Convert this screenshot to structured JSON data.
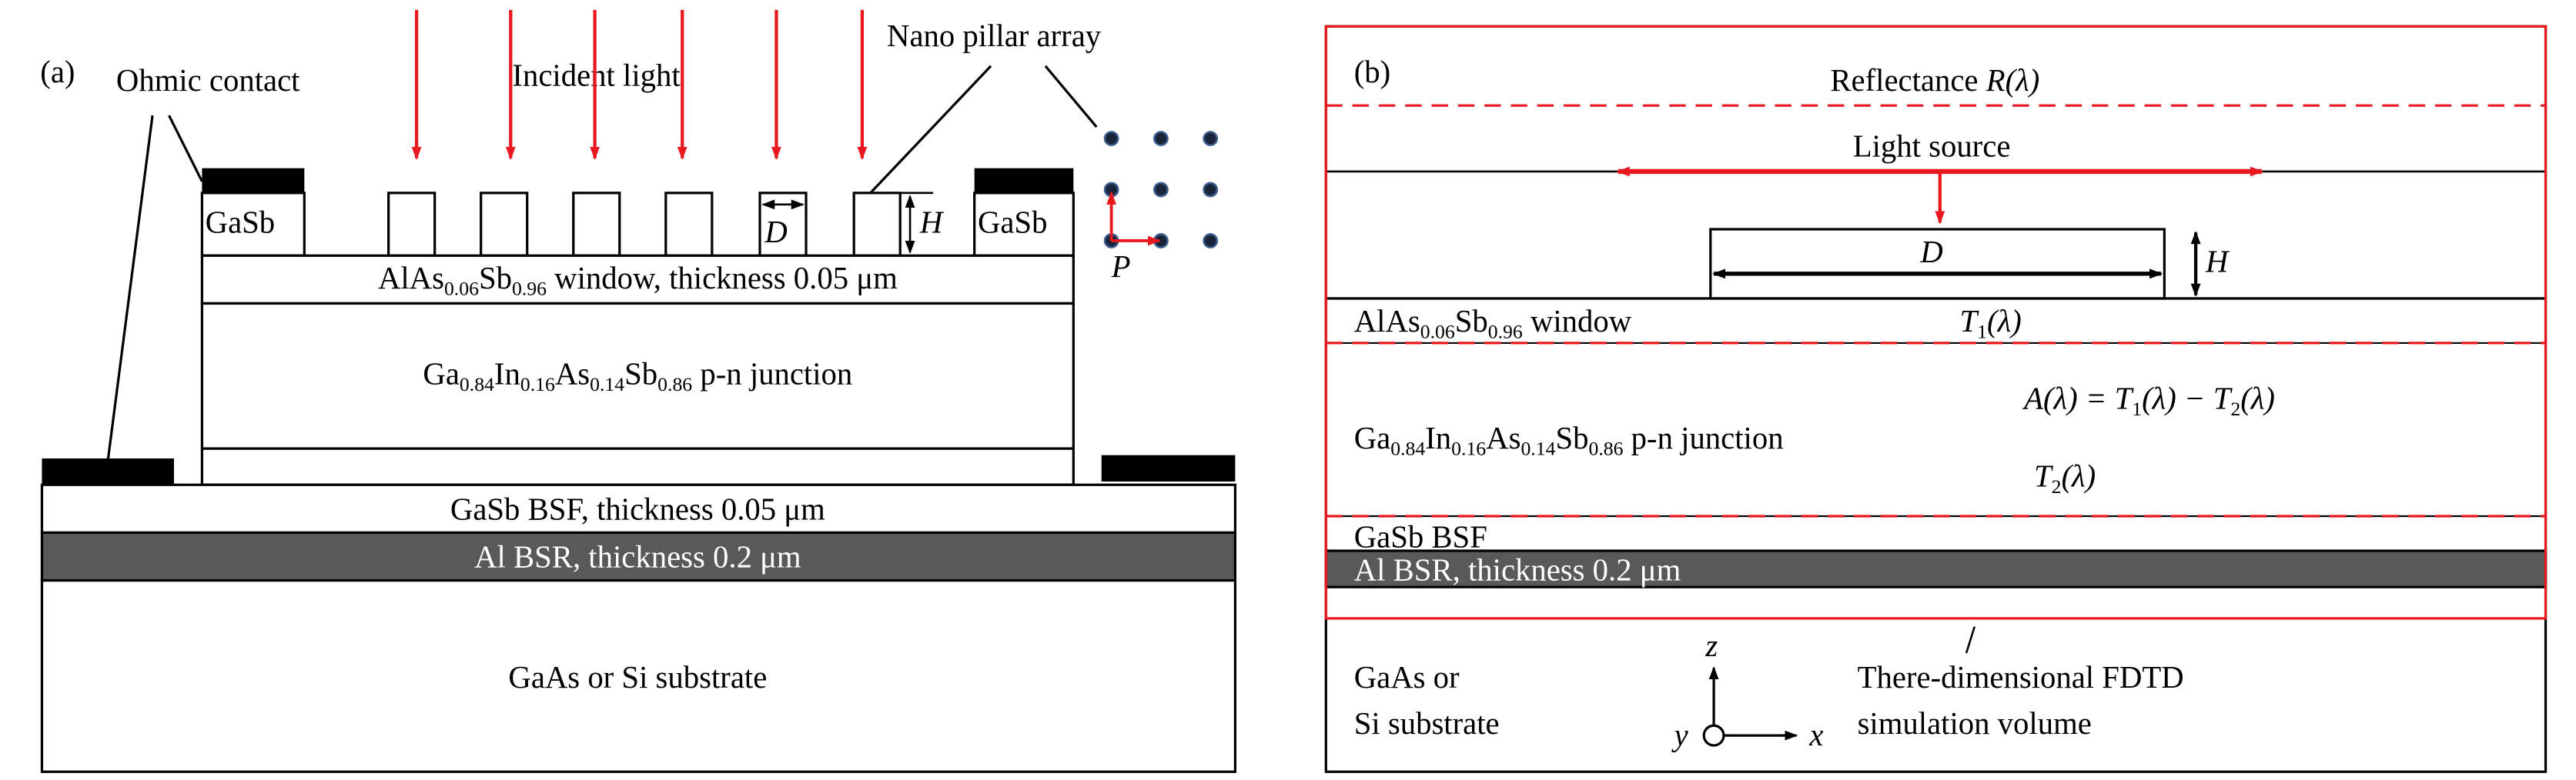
{
  "colors": {
    "accent_red": "#e8191e",
    "bsr_gray": "#595959",
    "dot_fill": "#1a2438",
    "dot_edge": "#3a5a8c"
  },
  "panel_a": {
    "label": "(a)",
    "ohmic_contact": "Ohmic contact",
    "incident_light": "Incident light",
    "nano_pillar_array": "Nano pillar array",
    "gasb_left": "GaSb",
    "gasb_right": "GaSb",
    "d_label": "D",
    "h_label": "H",
    "p_label": "P",
    "window": {
      "a": "AlAs",
      "s1": "0.06",
      "b": "Sb",
      "s2": "0.96",
      "rest": " window, thickness 0.05 μm"
    },
    "junction": {
      "a": "Ga",
      "s1": "0.84",
      "b": "In",
      "s2": "0.16",
      "c": "As",
      "s3": "0.14",
      "d": "Sb",
      "s4": "0.86",
      "rest": " p-n junction"
    },
    "bsf": "GaSb BSF, thickness 0.05 μm",
    "bsr": "Al BSR, thickness 0.2 μm",
    "substrate": "GaAs or Si substrate"
  },
  "panel_b": {
    "label": "(b)",
    "reflectance": {
      "text": "Reflectance ",
      "sym": "R(λ)"
    },
    "light_source": "Light source",
    "d_label": "D",
    "h_label": "H",
    "window": {
      "a": "AlAs",
      "s1": "0.06",
      "b": "Sb",
      "s2": "0.96",
      "rest": " window"
    },
    "t1": {
      "t": "T",
      "sub": "1",
      "rest": "(λ)"
    },
    "absorption": {
      "a": "A(λ) = T",
      "s1": "1",
      "m": "(λ) − T",
      "s2": "2",
      "rest": "(λ)"
    },
    "t2": {
      "t": "T",
      "sub": "2",
      "rest": "(λ)"
    },
    "junction": {
      "a": "Ga",
      "s1": "0.84",
      "b": "In",
      "s2": "0.16",
      "c": "As",
      "s3": "0.14",
      "d": "Sb",
      "s4": "0.86",
      "rest": " p-n junction"
    },
    "bsf": "GaSb BSF",
    "bsr": "Al BSR, thickness 0.2 μm",
    "substrate_line1": "GaAs or",
    "substrate_line2": "Si substrate",
    "axis_z": "z",
    "axis_x": "x",
    "axis_y": "y",
    "fdtd_line1": "There-dimensional FDTD",
    "fdtd_line2": "simulation volume"
  }
}
